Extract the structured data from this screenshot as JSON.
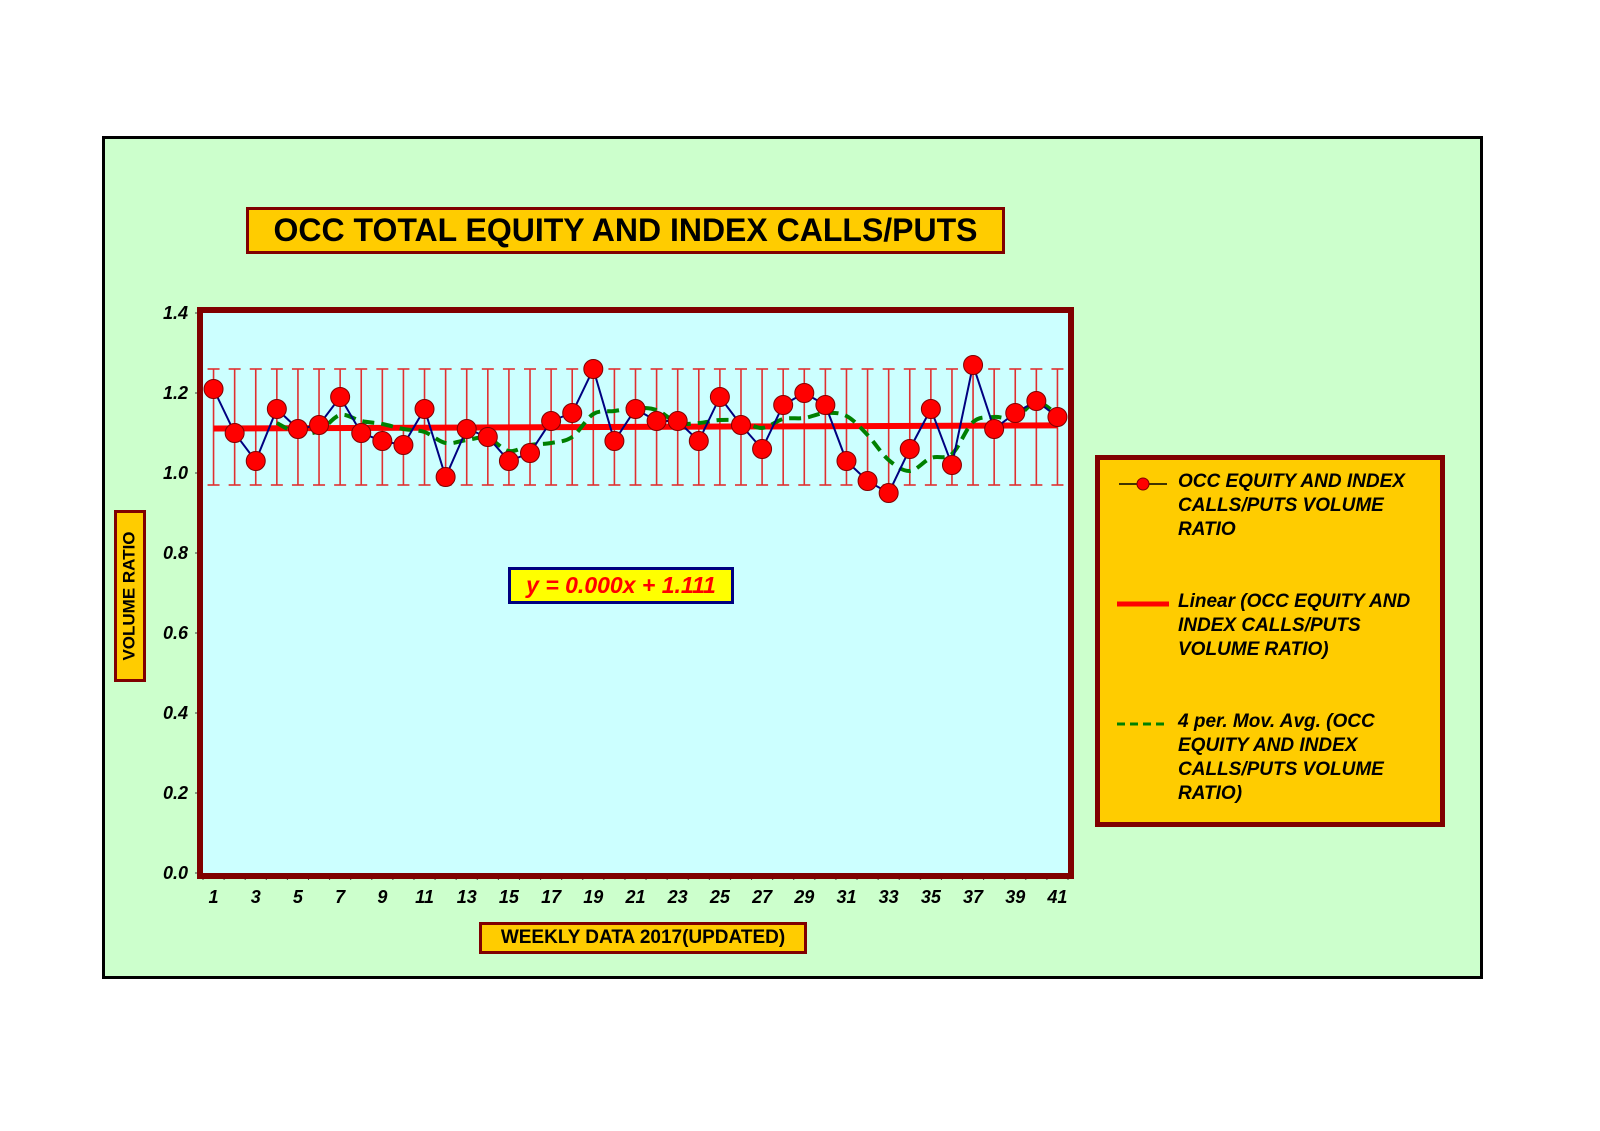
{
  "chart_data": {
    "type": "line",
    "title": "OCC TOTAL EQUITY AND INDEX CALLS/PUTS",
    "xlabel": "WEEKLY DATA 2017(UPDATED)",
    "ylabel": "VOLUME RATIO",
    "ylim": [
      0.0,
      1.4
    ],
    "yticks": [
      "0.0",
      "0.2",
      "0.4",
      "0.6",
      "0.8",
      "1.0",
      "1.2",
      "1.4"
    ],
    "xticks": [
      "1",
      "3",
      "5",
      "7",
      "9",
      "11",
      "13",
      "15",
      "17",
      "19",
      "21",
      "23",
      "25",
      "27",
      "29",
      "31",
      "33",
      "35",
      "37",
      "39",
      "41"
    ],
    "grid": false,
    "legend_position": "right",
    "x": [
      1,
      2,
      3,
      4,
      5,
      6,
      7,
      8,
      9,
      10,
      11,
      12,
      13,
      14,
      15,
      16,
      17,
      18,
      19,
      20,
      21,
      22,
      23,
      24,
      25,
      26,
      27,
      28,
      29,
      30,
      31,
      32,
      33,
      34,
      35,
      36,
      37,
      38,
      39,
      40,
      41
    ],
    "series": [
      {
        "name": "OCC EQUITY AND INDEX CALLS/PUTS VOLUME RATIO",
        "style": "line-marker",
        "values": [
          1.21,
          1.1,
          1.03,
          1.16,
          1.11,
          1.12,
          1.19,
          1.1,
          1.08,
          1.07,
          1.16,
          0.99,
          1.11,
          1.09,
          1.03,
          1.05,
          1.13,
          1.15,
          1.26,
          1.08,
          1.16,
          1.13,
          1.13,
          1.08,
          1.19,
          1.12,
          1.06,
          1.17,
          1.2,
          1.17,
          1.03,
          0.98,
          0.95,
          1.06,
          1.16,
          1.02,
          1.27,
          1.11,
          1.15,
          1.18,
          1.14
        ],
        "error_bars": {
          "upper": 1.26,
          "lower": 0.97
        }
      },
      {
        "name": "Linear (OCC EQUITY AND INDEX CALLS/PUTS VOLUME RATIO)",
        "style": "trendline",
        "equation": "y = 0.000x + 1.111",
        "slope": 0.0002,
        "intercept": 1.111
      },
      {
        "name": "4 per. Mov. Avg. (OCC EQUITY AND INDEX CALLS/PUTS VOLUME RATIO)",
        "style": "moving-average",
        "period": 4
      }
    ],
    "annotations": [
      "y = 0.000x + 1.111"
    ]
  },
  "colors": {
    "frame_bg": "#ccffcc",
    "plot_bg": "#ccffff",
    "plot_border": "#800000",
    "label_box_bg": "#ffcc00",
    "data_line": "#000080",
    "marker": "#ff0000",
    "trend": "#ff0000",
    "moving_avg": "#008000",
    "error_bar": "#e03030"
  },
  "legend": {
    "entries": [
      {
        "label": "OCC EQUITY AND INDEX CALLS/PUTS VOLUME RATIO"
      },
      {
        "label": "Linear (OCC EQUITY AND INDEX CALLS/PUTS VOLUME RATIO)"
      },
      {
        "label": "4 per. Mov. Avg. (OCC EQUITY AND INDEX CALLS/PUTS VOLUME RATIO)"
      }
    ]
  }
}
